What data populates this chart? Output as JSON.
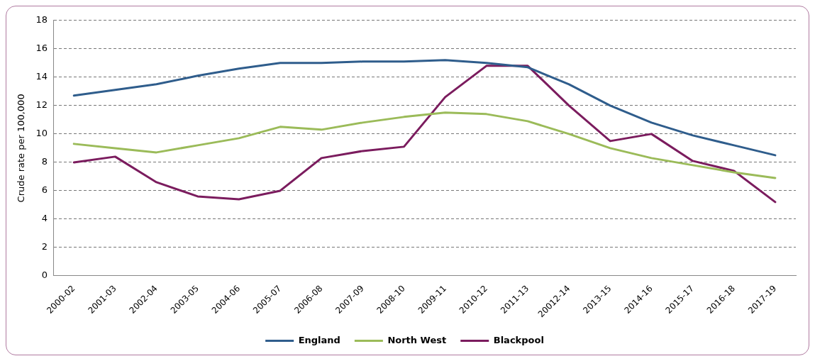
{
  "chart_data": {
    "type": "line",
    "ylabel": "Crude rate per 100,000",
    "categories": [
      "2000-02",
      "2001-03",
      "2002-04",
      "2003-05",
      "2004-06",
      "2005-07",
      "2006-08",
      "2007-09",
      "2008-10",
      "2009-11",
      "2010-12",
      "2011-13",
      "20012-14",
      "2013-15",
      "2014-16",
      "2015-17",
      "2016-18",
      "2017-19"
    ],
    "series": [
      {
        "name": "England",
        "color": "#2f5d8c",
        "values": [
          12.7,
          13.1,
          13.5,
          14.1,
          14.6,
          15.0,
          15.0,
          15.1,
          15.1,
          15.2,
          15.0,
          14.7,
          13.5,
          12.0,
          10.8,
          9.9,
          9.2,
          8.5
        ]
      },
      {
        "name": "North West",
        "color": "#9bbb59",
        "values": [
          9.3,
          9.0,
          8.7,
          9.2,
          9.7,
          10.5,
          10.3,
          10.8,
          11.2,
          11.5,
          11.4,
          10.9,
          10.0,
          9.0,
          8.3,
          7.8,
          7.3,
          6.9
        ]
      },
      {
        "name": "Blackpool",
        "color": "#7b1c5e",
        "values": [
          8.0,
          8.4,
          6.6,
          5.6,
          5.4,
          6.0,
          8.3,
          8.8,
          9.1,
          12.6,
          14.8,
          14.8,
          12.0,
          9.5,
          10.0,
          8.1,
          7.4,
          5.2
        ]
      }
    ],
    "ylim": [
      0,
      18
    ],
    "yticks": [
      0,
      2,
      4,
      6,
      8,
      10,
      12,
      14,
      16,
      18
    ],
    "grid": "y",
    "legend": "bottom",
    "marker": "none",
    "line_style": "solid"
  }
}
